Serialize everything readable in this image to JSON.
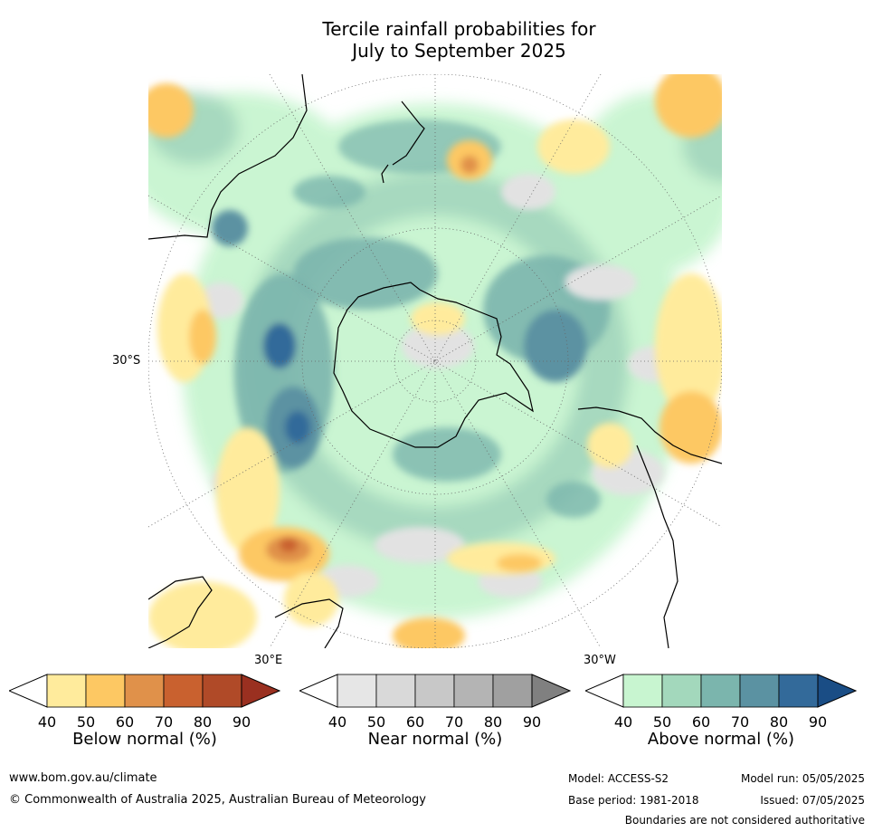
{
  "title_line1": "Tercile rainfall probabilities for",
  "title_line2": "July to September 2025",
  "map": {
    "lat_label": "30°S",
    "lon_label_left": "30°E",
    "lon_label_right": "30°W"
  },
  "legends": [
    {
      "name": "Below normal (%)",
      "ticks": [
        "40",
        "50",
        "60",
        "70",
        "80",
        "90"
      ],
      "colors": [
        "#ffffff",
        "#ffeb9c",
        "#fdc863",
        "#e0914a",
        "#c9612f",
        "#b04a28",
        "#9a3020"
      ]
    },
    {
      "name": "Near normal (%)",
      "ticks": [
        "40",
        "50",
        "60",
        "70",
        "80",
        "90"
      ],
      "colors": [
        "#ffffff",
        "#e6e6e6",
        "#d9d9d9",
        "#c8c8c8",
        "#b4b4b4",
        "#a0a0a0",
        "#808080"
      ]
    },
    {
      "name": "Above normal (%)",
      "ticks": [
        "40",
        "50",
        "60",
        "70",
        "80",
        "90"
      ],
      "colors": [
        "#ffffff",
        "#c8f5d0",
        "#a3d8bc",
        "#7bb5ad",
        "#5b92a2",
        "#336a9a",
        "#1a4d85"
      ]
    }
  ],
  "footer": {
    "website": "www.bom.gov.au/climate",
    "copyright": "© Commonwealth of Australia 2025, Australian Bureau of Meteorology",
    "model": "Model: ACCESS-S2",
    "base_period": "Base period: 1981-2018",
    "model_run": "Model run: 05/05/2025",
    "issued": "Issued: 07/05/2025",
    "disclaimer": "Boundaries are not considered authoritative"
  }
}
